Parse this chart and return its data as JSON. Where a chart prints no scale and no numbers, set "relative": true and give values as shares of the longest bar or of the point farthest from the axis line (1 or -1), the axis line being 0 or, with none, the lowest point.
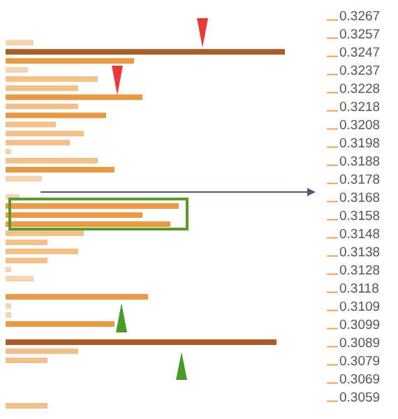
{
  "chart_data": {
    "type": "bar",
    "orientation": "horizontal",
    "relative": true,
    "categories": [
      null,
      "0.3267",
      null,
      "0.3257",
      null,
      "0.3247",
      null,
      "0.3237",
      null,
      "0.3228",
      null,
      "0.3218",
      null,
      "0.3208",
      null,
      "0.3198",
      null,
      "0.3188",
      null,
      "0.3178",
      null,
      "0.3168",
      null,
      "0.3158",
      null,
      "0.3148",
      null,
      "0.3138",
      null,
      "0.3128",
      null,
      "0.3118",
      null,
      "0.3109",
      null,
      "0.3099",
      null,
      "0.3089",
      null,
      "0.3079",
      null,
      "0.3069",
      null,
      "0.3059",
      null
    ],
    "values": [
      0,
      0,
      0,
      0,
      0.1,
      1,
      0.46,
      0.08,
      0.33,
      0.26,
      0.49,
      0.26,
      0.36,
      0.18,
      0.28,
      0.23,
      0.02,
      0.33,
      0.39,
      0.13,
      0,
      0.05,
      0.62,
      0.49,
      0.59,
      0.28,
      0.15,
      0.26,
      0.15,
      0.02,
      0.1,
      0,
      0.51,
      0.02,
      0.02,
      0.39,
      0,
      0.97,
      0.26,
      0.15,
      0,
      0,
      0,
      0,
      0.15
    ],
    "colors": [
      "#f2c08a",
      "#f2c08a",
      "#f2c08a",
      "#f2c08a",
      "#f6d4b0",
      "#a65d26",
      "#e89a45",
      "#f6d4b0",
      "#f2c08a",
      "#f2c08a",
      "#e89a45",
      "#f2c08a",
      "#e89a45",
      "#f2c08a",
      "#f2c08a",
      "#f2c08a",
      "#f6d4b0",
      "#f2c08a",
      "#e89a45",
      "#f6d4b0",
      "#f6d4b0",
      "#f6d4b0",
      "#e89a45",
      "#e89a45",
      "#e89a45",
      "#f2c08a",
      "#f2c08a",
      "#f2c08a",
      "#f2c08a",
      "#f6d4b0",
      "#f6d4b0",
      "#f2c08a",
      "#e89a45",
      "#f6d4b0",
      "#f6d4b0",
      "#e89a45",
      "#f2c08a",
      "#a65d26",
      "#f2c08a",
      "#f2c08a",
      "#f2c08a",
      "#f2c08a",
      "#f2c08a",
      "#f2c08a",
      "#f2c08a"
    ]
  }
}
